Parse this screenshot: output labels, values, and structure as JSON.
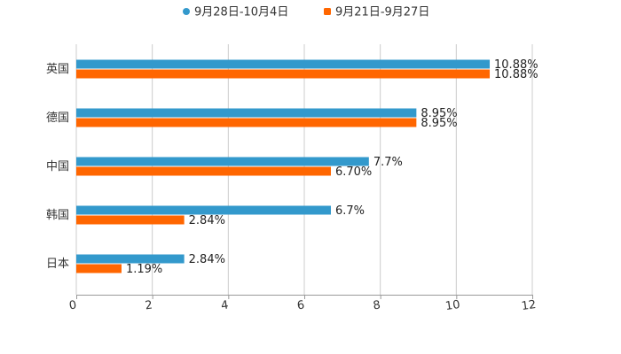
{
  "chart_data": {
    "type": "bar",
    "orientation": "horizontal",
    "title": "",
    "xlabel": "",
    "ylabel": "",
    "xlim": [
      0,
      12
    ],
    "xticks": [
      0,
      2,
      4,
      6,
      8,
      10,
      12
    ],
    "grid": true,
    "legend_position": "top-center",
    "categories": [
      "英国",
      "德国",
      "中国",
      "韩国",
      "日本"
    ],
    "series": [
      {
        "name": "9月28日-10月4日",
        "color": "#3399cc",
        "values": [
          10.88,
          8.95,
          7.7,
          6.7,
          2.84
        ],
        "labels": [
          "10.88%",
          "8.95%",
          "7.7%",
          "6.7%",
          "2.84%"
        ]
      },
      {
        "name": "9月21日-9月27日",
        "color": "#ff6600",
        "values": [
          10.88,
          8.95,
          6.7,
          2.84,
          1.19
        ],
        "labels": [
          "10.88%",
          "8.95%",
          "6.70%",
          "2.84%",
          "1.19%"
        ]
      }
    ]
  }
}
